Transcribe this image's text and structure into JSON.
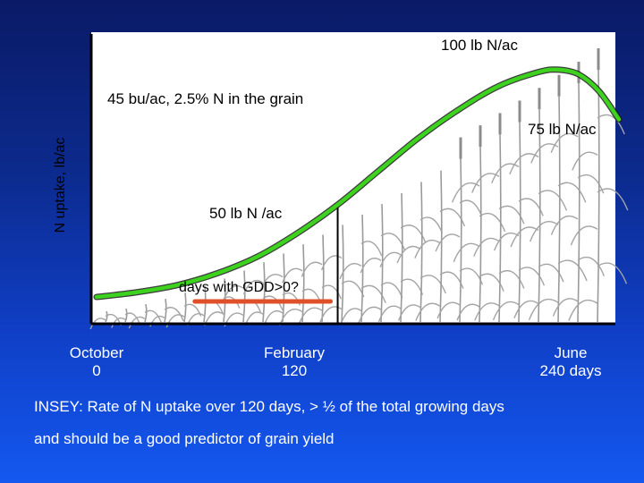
{
  "chart_data": {
    "type": "line",
    "ylabel": "N uptake, lb/ac",
    "x_ticks": [
      {
        "line1": "October",
        "line2": "0"
      },
      {
        "line1": "February",
        "line2": "120"
      },
      {
        "line1": "June",
        "line2": "240 days"
      }
    ],
    "xlim": [
      0,
      260
    ],
    "ylim": [
      0,
      105
    ],
    "series": [
      {
        "name": "N uptake",
        "color": "#3cd21e",
        "x": [
          0,
          20,
          40,
          60,
          80,
          100,
          120,
          140,
          160,
          180,
          200,
          220,
          230,
          240,
          250,
          260
        ],
        "y": [
          3,
          5,
          8,
          13,
          20,
          30,
          42,
          56,
          70,
          82,
          92,
          98,
          99,
          97,
          90,
          78
        ]
      }
    ],
    "annotations": {
      "top_right": "100 lb N/ac",
      "grain": "45 bu/ac, 2.5% N in the grain",
      "right_mid": "75 lb N/ac",
      "mid": "50 lb N /ac",
      "gdd": "days with GDD>0?"
    },
    "marker_x": 120,
    "gdd_range": [
      40,
      120
    ]
  },
  "caption": {
    "line1": "INSEY:  Rate of N uptake over 120 days, > ½ of the total growing days",
    "line2": "and should be a good predictor of grain yield"
  },
  "colors": {
    "curve": "#3cd21e",
    "gdd_bar": "#e05028",
    "axis": "#000000",
    "panel": "#ffffff"
  }
}
